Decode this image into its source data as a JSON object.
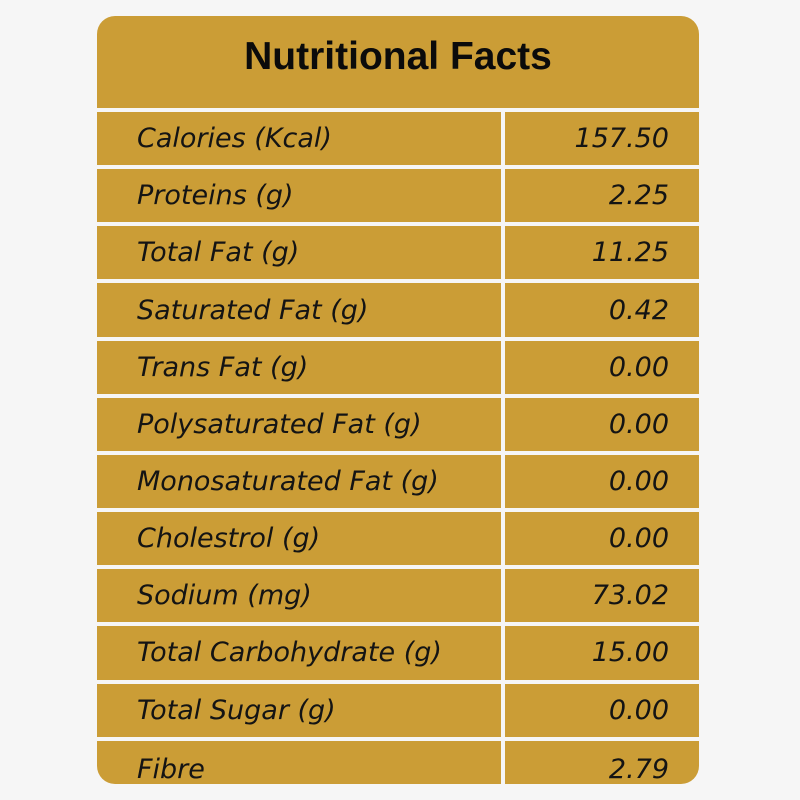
{
  "table": {
    "title": "Nutritional Facts",
    "rows": [
      {
        "label": "Calories (Kcal)",
        "value": "157.50"
      },
      {
        "label": "Proteins (g)",
        "value": "2.25"
      },
      {
        "label": "Total Fat (g)",
        "value": "11.25"
      },
      {
        "label": "Saturated Fat (g)",
        "value": "0.42"
      },
      {
        "label": "Trans Fat (g)",
        "value": "0.00"
      },
      {
        "label": "Polysaturated Fat (g)",
        "value": "0.00"
      },
      {
        "label": "Monosaturated Fat (g)",
        "value": "0.00"
      },
      {
        "label": "Cholestrol (g)",
        "value": "0.00"
      },
      {
        "label": "Sodium (mg)",
        "value": "73.02"
      },
      {
        "label": "Total Carbohydrate (g)",
        "value": "15.00"
      },
      {
        "label": "Total Sugar (g)",
        "value": "0.00"
      },
      {
        "label": "Fibre",
        "value": "2.79"
      }
    ]
  },
  "colors": {
    "card_background": "#cb9d36",
    "page_background": "#f6f6f6",
    "text": "#141414"
  }
}
